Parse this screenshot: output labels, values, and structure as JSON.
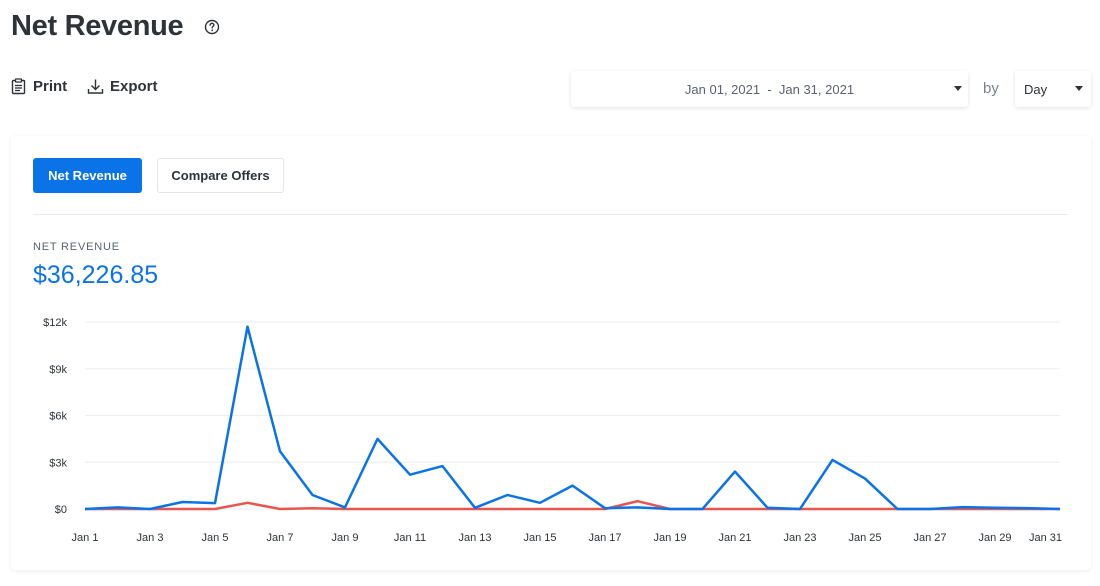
{
  "header": {
    "title": "Net Revenue",
    "help_icon": "question-circle-icon"
  },
  "toolbar": {
    "print_label": "Print",
    "print_icon": "clipboard-icon",
    "export_label": "Export",
    "export_icon": "download-icon"
  },
  "filters": {
    "date_range": "Jan 01, 2021  -  Jan 31, 2021",
    "by_label": "by",
    "granularity": "Day"
  },
  "tabs": [
    {
      "label": "Net Revenue",
      "active": true
    },
    {
      "label": "Compare Offers",
      "active": false
    }
  ],
  "metric": {
    "label": "NET REVENUE",
    "value": "$36,226.85"
  },
  "colors": {
    "accent": "#0a73e8",
    "secondary_series": "#e8554e"
  },
  "chart_data": {
    "type": "line",
    "x": [
      "Jan 1",
      "Jan 2",
      "Jan 3",
      "Jan 4",
      "Jan 5",
      "Jan 6",
      "Jan 7",
      "Jan 8",
      "Jan 9",
      "Jan 10",
      "Jan 11",
      "Jan 12",
      "Jan 13",
      "Jan 14",
      "Jan 15",
      "Jan 16",
      "Jan 17",
      "Jan 18",
      "Jan 19",
      "Jan 20",
      "Jan 21",
      "Jan 22",
      "Jan 23",
      "Jan 24",
      "Jan 25",
      "Jan 26",
      "Jan 27",
      "Jan 28",
      "Jan 29",
      "Jan 30",
      "Jan 31"
    ],
    "x_tick_labels": [
      "Jan 1",
      "Jan 3",
      "Jan 5",
      "Jan 7",
      "Jan 9",
      "Jan 11",
      "Jan 13",
      "Jan 15",
      "Jan 17",
      "Jan 19",
      "Jan 21",
      "Jan 23",
      "Jan 25",
      "Jan 27",
      "Jan 29",
      "Jan 31"
    ],
    "y_tick_labels": [
      "$0",
      "$3k",
      "$6k",
      "$9k",
      "$12k"
    ],
    "y_ticks": [
      0,
      3000,
      6000,
      9000,
      12000
    ],
    "ylim": [
      0,
      12000
    ],
    "grid": true,
    "series": [
      {
        "values": [
          0,
          100,
          0,
          450,
          380,
          11700,
          3700,
          900,
          100,
          4500,
          2200,
          2750,
          80,
          900,
          400,
          1500,
          50,
          100,
          0,
          0,
          2400,
          80,
          0,
          3150,
          1950,
          0,
          0,
          120,
          80,
          60,
          0
        ],
        "color": "#0a73e8"
      },
      {
        "values": [
          0,
          0,
          0,
          0,
          0,
          400,
          0,
          50,
          0,
          0,
          0,
          0,
          0,
          0,
          0,
          0,
          0,
          500,
          0,
          0,
          0,
          0,
          0,
          0,
          0,
          0,
          0,
          0,
          0,
          0,
          0
        ],
        "color": "#e8554e"
      }
    ]
  }
}
